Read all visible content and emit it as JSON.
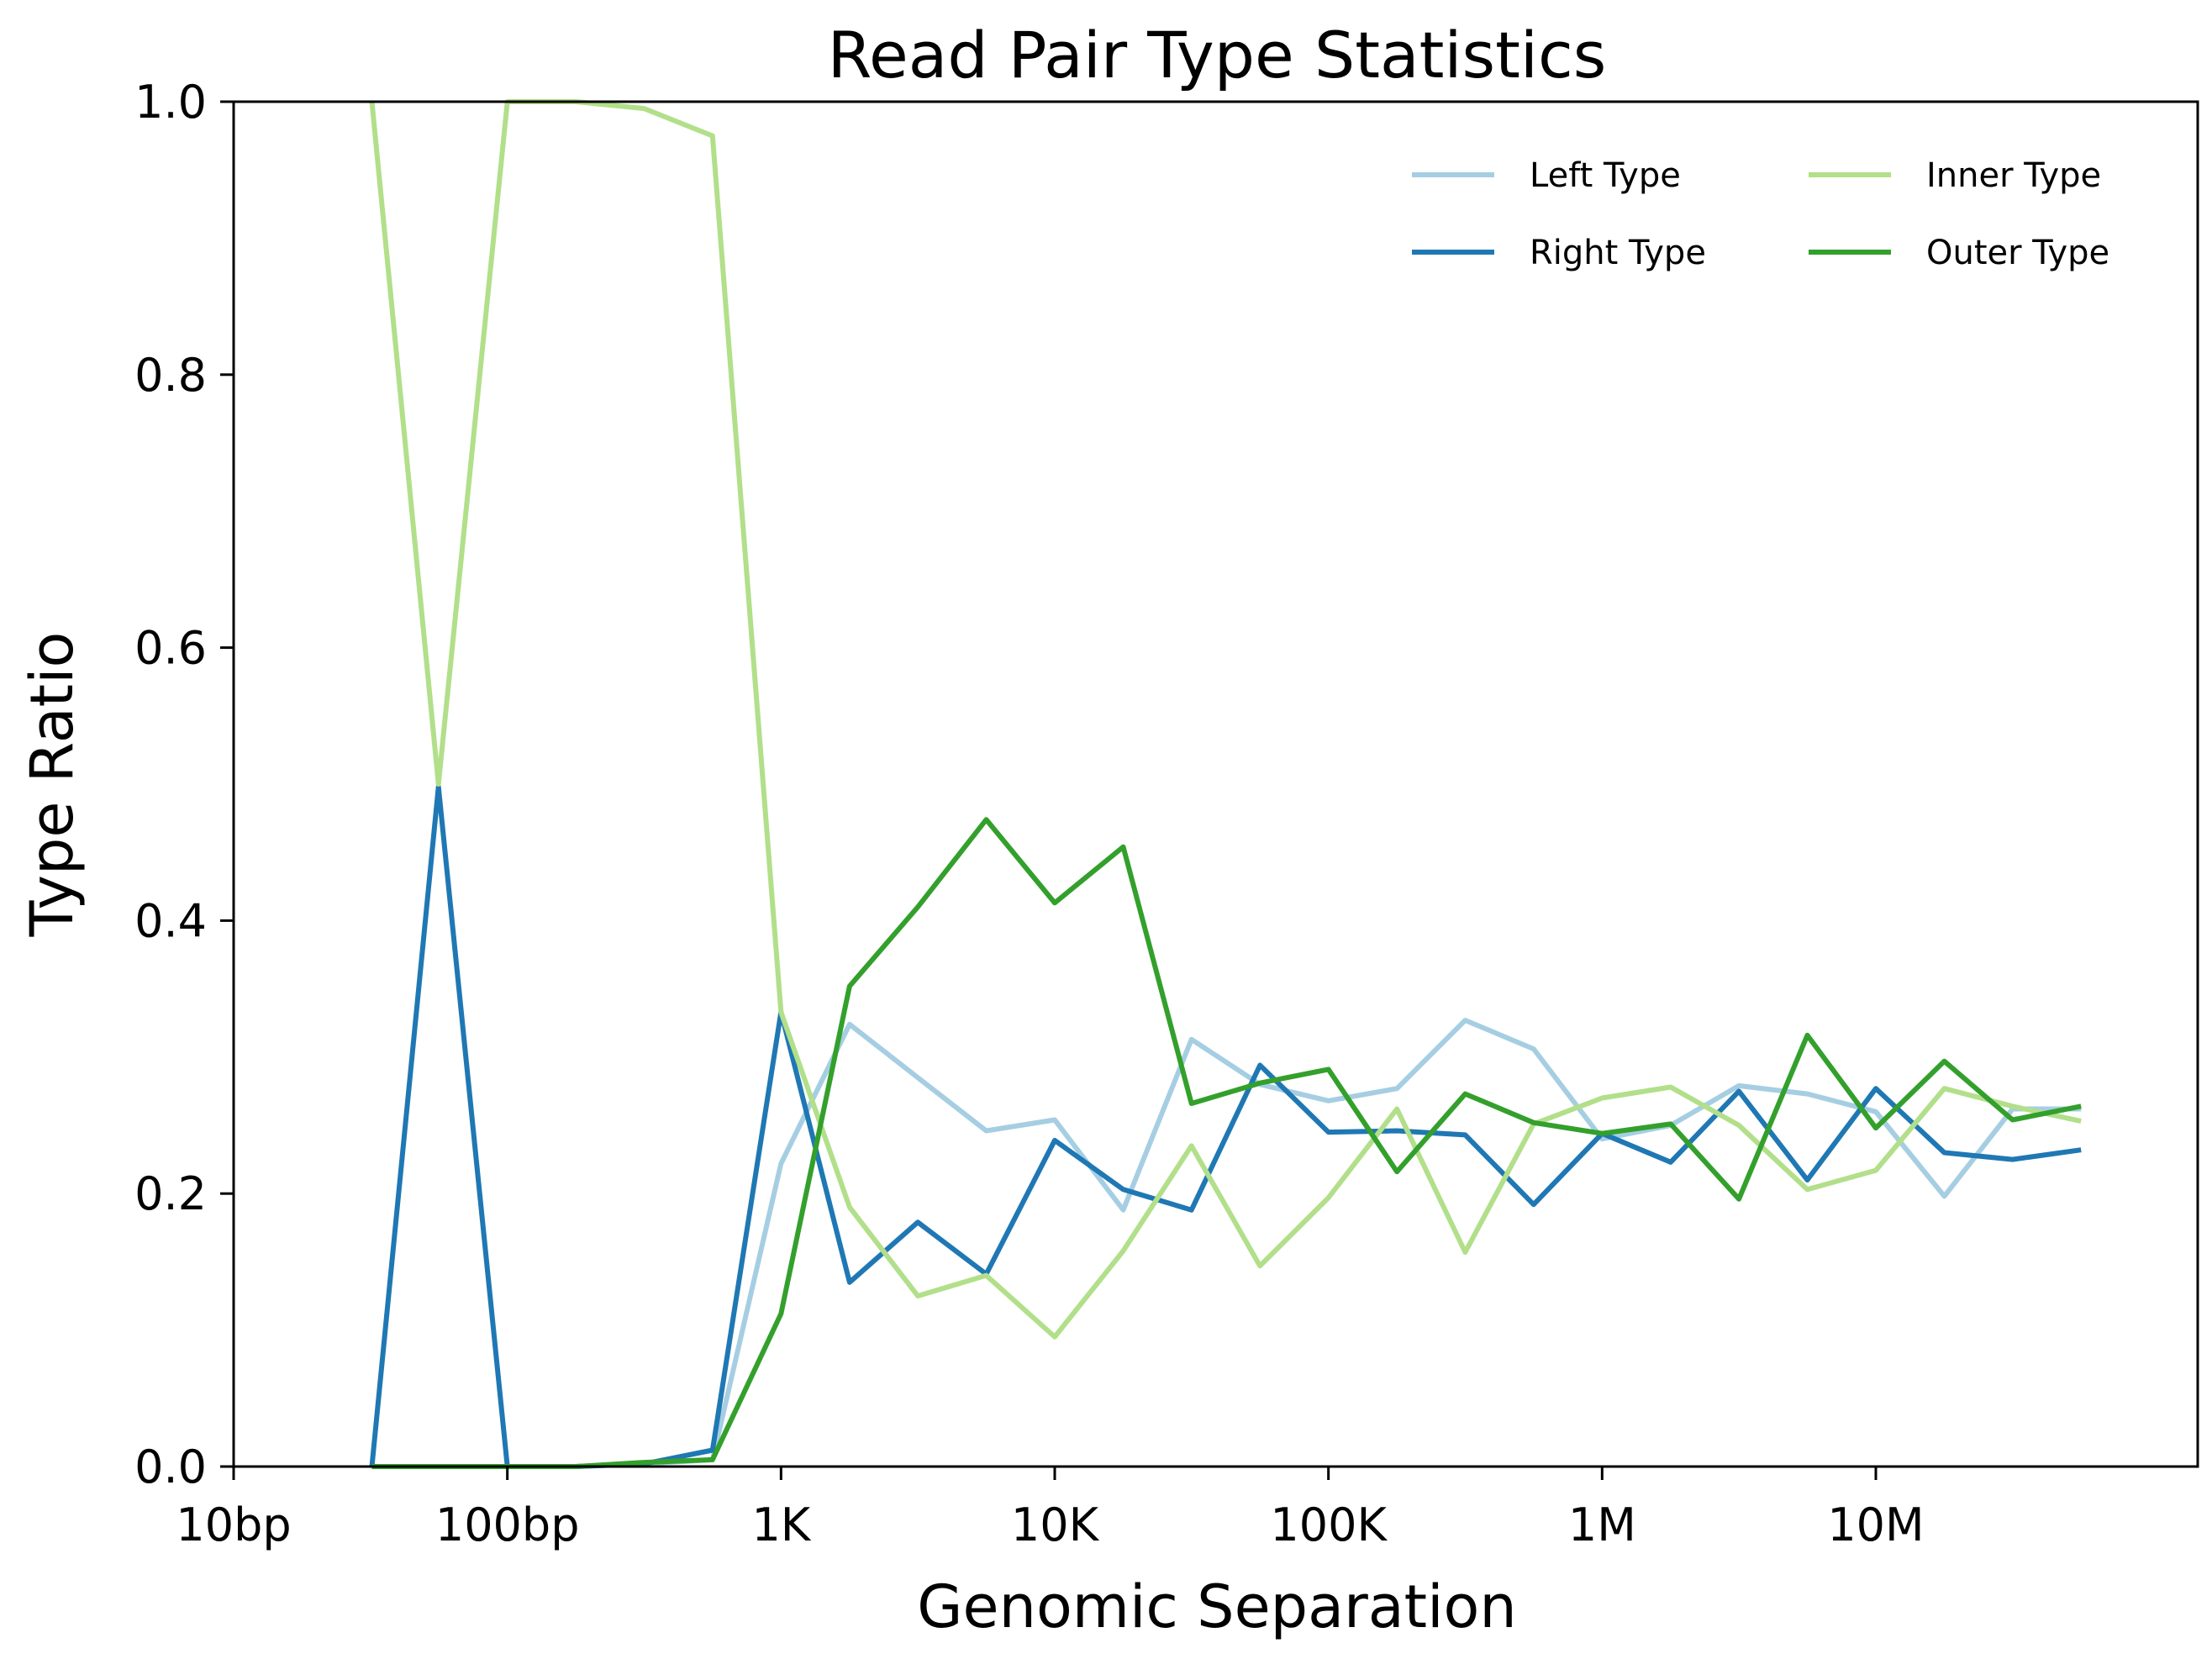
{
  "chart_data": {
    "type": "line",
    "title": "Read Pair Type Statistics",
    "xlabel": "Genomic Separation",
    "ylabel": "Type Ratio",
    "xscale": "log",
    "xlim": [
      10,
      150000000
    ],
    "ylim": [
      0,
      1.0
    ],
    "grid": false,
    "legend": {
      "placement": "top-right",
      "columns": 2
    },
    "x_ticks": [
      {
        "value": 10,
        "label": "10bp"
      },
      {
        "value": 100,
        "label": "100bp"
      },
      {
        "value": 1000,
        "label": "1K"
      },
      {
        "value": 10000,
        "label": "10K"
      },
      {
        "value": 100000,
        "label": "100K"
      },
      {
        "value": 1000000,
        "label": "1M"
      },
      {
        "value": 10000000,
        "label": "10M"
      }
    ],
    "y_ticks": [
      {
        "value": 0.0,
        "label": "0.0"
      },
      {
        "value": 0.2,
        "label": "0.2"
      },
      {
        "value": 0.4,
        "label": "0.4"
      },
      {
        "value": 0.6,
        "label": "0.6"
      },
      {
        "value": 0.8,
        "label": "0.8"
      },
      {
        "value": 1.0,
        "label": "1.0"
      }
    ],
    "x": [
      32,
      56,
      100,
      178,
      316,
      562,
      1000,
      1780,
      3160,
      5620,
      10000,
      17800,
      31600,
      56200,
      100000,
      178000,
      316000,
      562000,
      1000000,
      1780000,
      3160000,
      5620000,
      10000000,
      17800000,
      31600000,
      56200000
    ],
    "series": [
      {
        "name": "Left Type",
        "color": "#a6cee3",
        "values": [
          0.0,
          0.0,
          0.0,
          0.0,
          0.002,
          0.005,
          0.222,
          0.324,
          0.285,
          0.246,
          0.254,
          0.188,
          0.313,
          0.28,
          0.268,
          0.277,
          0.327,
          0.306,
          0.24,
          0.25,
          0.279,
          0.273,
          0.26,
          0.198,
          0.262,
          0.262
        ]
      },
      {
        "name": "Right Type",
        "color": "#1f78b4",
        "values": [
          0.0,
          0.498,
          0.0,
          0.0,
          0.002,
          0.012,
          0.333,
          0.135,
          0.179,
          0.141,
          0.239,
          0.203,
          0.188,
          0.294,
          0.245,
          0.246,
          0.243,
          0.192,
          0.244,
          0.223,
          0.275,
          0.21,
          0.277,
          0.23,
          0.225,
          0.232
        ]
      },
      {
        "name": "Inner Type",
        "color": "#b2df8a",
        "values": [
          1.0,
          0.5,
          1.0,
          1.0,
          0.995,
          0.975,
          0.333,
          0.19,
          0.125,
          0.14,
          0.095,
          0.158,
          0.235,
          0.147,
          0.197,
          0.262,
          0.157,
          0.251,
          0.27,
          0.278,
          0.25,
          0.203,
          0.217,
          0.277,
          0.264,
          0.253
        ]
      },
      {
        "name": "Outer Type",
        "color": "#33a02c",
        "values": [
          0.0,
          0.0,
          0.0,
          0.0,
          0.003,
          0.005,
          0.112,
          0.352,
          0.41,
          0.474,
          0.413,
          0.454,
          0.266,
          0.281,
          0.291,
          0.216,
          0.273,
          0.252,
          0.244,
          0.251,
          0.196,
          0.316,
          0.248,
          0.297,
          0.254,
          0.264
        ]
      }
    ]
  }
}
